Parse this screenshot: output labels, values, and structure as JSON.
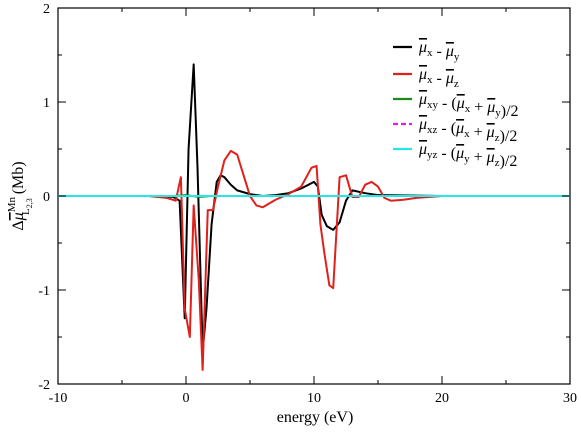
{
  "chart_data": {
    "type": "line",
    "title": "",
    "xlabel": "energy (eV)",
    "ylabel_parts": {
      "delta": "Δ",
      "mu": "μ",
      "sup": "Mn",
      "sub": "L",
      "subsub": "2,3",
      "unit": " (Mb)"
    },
    "xlim": [
      -10,
      30
    ],
    "ylim": [
      -2,
      2
    ],
    "x_ticks": [
      -10,
      0,
      10,
      20,
      30
    ],
    "x_tick_labels": [
      "-10",
      "0",
      "10",
      "20",
      "30"
    ],
    "y_ticks": [
      -2,
      -1,
      0,
      1,
      2
    ],
    "y_tick_labels": [
      "-2",
      "-1",
      "0",
      "1",
      "2"
    ],
    "legend_position": "top-right",
    "series": [
      {
        "name": "μx - μy",
        "legend_parts": [
          [
            "μ",
            "x"
          ],
          [
            " - ",
            ""
          ],
          [
            "μ",
            "y"
          ]
        ],
        "color": "#000000",
        "dash": "",
        "x": [
          -10,
          -2,
          -1,
          -0.5,
          -0.1,
          0.2,
          0.6,
          0.9,
          1.3,
          1.6,
          2.0,
          2.4,
          2.7,
          3.0,
          3.5,
          4.0,
          5.0,
          6.0,
          7.0,
          8.0,
          9.0,
          10.0,
          10.3,
          10.6,
          11.0,
          11.5,
          12.0,
          12.5,
          13.0,
          14.0,
          15.0,
          20,
          25,
          30
        ],
        "y": [
          0,
          0,
          -0.01,
          -0.05,
          -1.3,
          0.5,
          1.4,
          0.3,
          -1.65,
          -1.2,
          -0.3,
          0.15,
          0.22,
          0.2,
          0.12,
          0.06,
          0.02,
          0.0,
          0.01,
          0.03,
          0.08,
          0.15,
          0.1,
          -0.2,
          -0.32,
          -0.36,
          -0.28,
          -0.05,
          0.06,
          0.03,
          0.01,
          0.0,
          0.0,
          0.0
        ]
      },
      {
        "name": "μx - μz",
        "legend_parts": [
          [
            "μ",
            "x"
          ],
          [
            " - ",
            ""
          ],
          [
            "μ",
            "z"
          ]
        ],
        "color": "#e0201b",
        "dash": "",
        "x": [
          -10,
          -3,
          -1.5,
          -0.8,
          -0.4,
          -0.1,
          0.3,
          0.6,
          1.0,
          1.3,
          1.7,
          2.1,
          2.5,
          3.0,
          3.5,
          4.0,
          4.5,
          5.0,
          5.5,
          6.0,
          6.5,
          7.0,
          8.0,
          9.0,
          9.8,
          10.2,
          10.5,
          10.8,
          11.2,
          11.5,
          12.0,
          12.5,
          13.0,
          13.5,
          14.0,
          14.5,
          15.0,
          15.5,
          16.0,
          17.0,
          18.0,
          20,
          25,
          30
        ],
        "y": [
          0,
          0,
          -0.02,
          -0.05,
          0.2,
          -1.2,
          -1.5,
          -0.1,
          -0.9,
          -1.85,
          -0.15,
          -0.15,
          0.1,
          0.38,
          0.48,
          0.44,
          0.22,
          0.0,
          -0.1,
          -0.12,
          -0.08,
          -0.04,
          0.02,
          0.1,
          0.3,
          0.32,
          -0.3,
          -0.6,
          -0.95,
          -0.98,
          0.2,
          0.22,
          -0.01,
          -0.01,
          0.12,
          0.15,
          0.1,
          -0.02,
          -0.05,
          -0.04,
          -0.02,
          0.0,
          0.0,
          0.0
        ]
      },
      {
        "name": "μxy - (μx + μy)/2",
        "legend_parts": [
          [
            "μ",
            "xy"
          ],
          [
            " - (",
            ""
          ],
          [
            "μ",
            "x"
          ],
          [
            " + ",
            ""
          ],
          [
            "μ",
            "y"
          ],
          [
            ")/2",
            ""
          ]
        ],
        "color": "#1a8a1a",
        "dash": "",
        "x": [
          -10,
          -1,
          0,
          1,
          2,
          5,
          10,
          12,
          15,
          20,
          30
        ],
        "y": [
          0,
          0,
          0.01,
          -0.01,
          0.0,
          0.0,
          0.0,
          0.0,
          0.0,
          0.0,
          0.0
        ]
      },
      {
        "name": "μxz - (μx + μz)/2",
        "legend_parts": [
          [
            "μ",
            "xz"
          ],
          [
            " - (",
            ""
          ],
          [
            "μ",
            "x"
          ],
          [
            " + ",
            ""
          ],
          [
            "μ",
            "z"
          ],
          [
            ")/2",
            ""
          ]
        ],
        "color": "#e020e0",
        "dash": "7,5",
        "x": [
          -10,
          -1,
          0,
          1,
          2,
          5,
          10,
          12,
          15,
          20,
          30
        ],
        "y": [
          0,
          0,
          0.0,
          0.0,
          0.0,
          0.0,
          0.0,
          0.0,
          0.0,
          0.0,
          0.0
        ]
      },
      {
        "name": "μyz - (μy + μz)/2",
        "legend_parts": [
          [
            "μ",
            "yz"
          ],
          [
            " - (",
            ""
          ],
          [
            "μ",
            "y"
          ],
          [
            " + ",
            ""
          ],
          [
            "μ",
            "z"
          ],
          [
            ")/2",
            ""
          ]
        ],
        "color": "#27e6e6",
        "dash": "",
        "x": [
          -10,
          -1,
          0,
          1,
          2,
          5,
          10,
          12,
          15,
          20,
          30
        ],
        "y": [
          0,
          0,
          0.0,
          0.0,
          0.0,
          0.0,
          0.0,
          0.0,
          0.0,
          0.0,
          0.0
        ]
      }
    ]
  }
}
